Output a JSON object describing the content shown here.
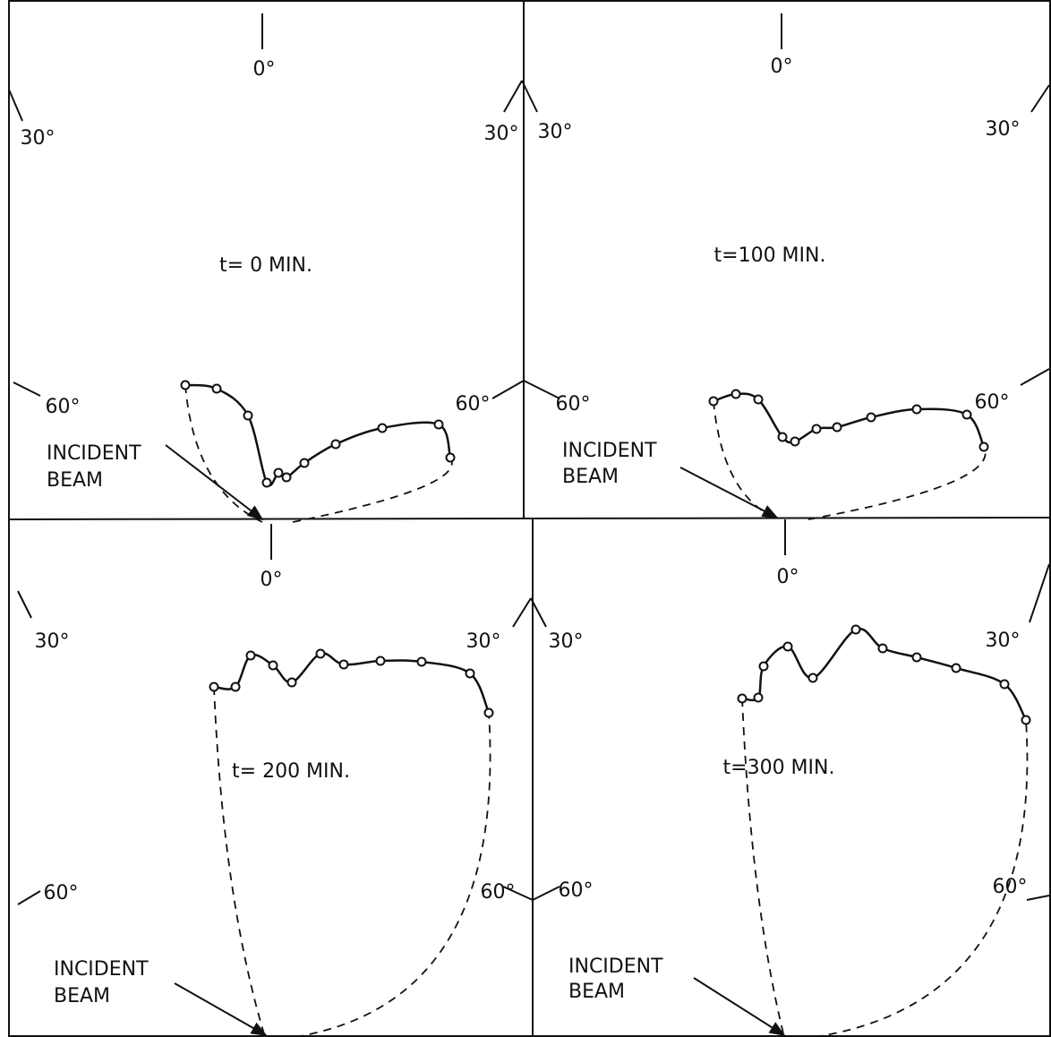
{
  "panels": [
    {
      "title": "t= 0 MIN.",
      "angles": [
        "0°",
        "30°",
        "30°",
        "60°",
        "60°"
      ],
      "beam": [
        "INCIDENT",
        "BEAM"
      ]
    },
    {
      "title": "t=100 MIN.",
      "angles": [
        "0°",
        "30°",
        "30°",
        "60°",
        "60°"
      ],
      "beam": [
        "INCIDENT",
        "BEAM"
      ]
    },
    {
      "title": "t= 200 MIN.",
      "angles": [
        "0°",
        "30°",
        "30°",
        "60°",
        "60°"
      ],
      "beam": [
        "INCIDENT",
        "BEAM"
      ]
    },
    {
      "title": "t=300 MIN.",
      "angles": [
        "0°",
        "30°",
        "30°",
        "60°",
        "60°"
      ],
      "beam": [
        "INCIDENT",
        "BEAM"
      ]
    }
  ]
}
